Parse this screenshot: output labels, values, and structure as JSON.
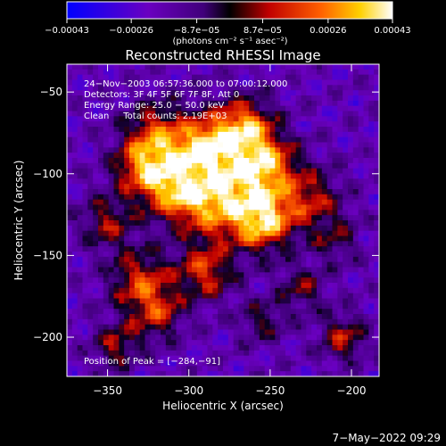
{
  "chart_data": {
    "type": "heatmap",
    "title": "Reconstructed RHESSI Image",
    "xlabel": "Heliocentric X (arcsec)",
    "ylabel": "Heliocentric Y (arcsec)",
    "xlim": [
      -375,
      -183
    ],
    "ylim": [
      -224,
      -33
    ],
    "x_ticks": [
      -350,
      -300,
      -250,
      -200
    ],
    "x_tick_labels": [
      "−350",
      "−300",
      "−250",
      "−200"
    ],
    "y_ticks": [
      -50,
      -100,
      -150,
      -200
    ],
    "y_tick_labels": [
      "−50",
      "−100",
      "−150",
      "−200"
    ],
    "colorbar": {
      "ticks": [
        -0.00043,
        -0.00026,
        -8.7e-05,
        8.7e-05,
        0.00026,
        0.00043
      ],
      "tick_labels": [
        "−0.00043",
        "−0.00026",
        "−8.7e−05",
        "8.7e−05",
        "0.00026",
        "0.00043"
      ],
      "unit_label": "(photons cm⁻² s⁻¹ asec⁻²)",
      "range": [
        -0.00043,
        0.00043
      ]
    },
    "annotations": [
      "24−Nov−2003 06:57:36.000 to 07:00:12.000",
      "Detectors: 3F 4F 5F 6F 7F 8F, Att 0",
      "Energy Range: 25.0 − 50.0 keV",
      "Clean     Total counts: 2.19E+03"
    ],
    "peak_label": "Position of Peak = [−284,−91]",
    "peak": [
      -284,
      -91
    ],
    "sources": [
      {
        "x": -287,
        "y": -88,
        "amp": 1.0,
        "sigma": 16
      },
      {
        "x": -255,
        "y": -95,
        "amp": 0.8,
        "sigma": 14
      },
      {
        "x": -255,
        "y": -128,
        "amp": 0.9,
        "sigma": 13
      },
      {
        "x": -285,
        "y": -120,
        "amp": 0.6,
        "sigma": 15
      },
      {
        "x": -310,
        "y": -108,
        "amp": 0.7,
        "sigma": 14
      },
      {
        "x": -330,
        "y": -95,
        "amp": 0.55,
        "sigma": 12
      },
      {
        "x": -320,
        "y": -75,
        "amp": 0.5,
        "sigma": 13
      },
      {
        "x": -265,
        "y": -70,
        "amp": 0.55,
        "sigma": 12
      },
      {
        "x": -225,
        "y": -115,
        "amp": 0.45,
        "sigma": 13
      },
      {
        "x": -290,
        "y": -160,
        "amp": 0.55,
        "sigma": 12
      },
      {
        "x": -330,
        "y": -165,
        "amp": 0.5,
        "sigma": 13
      },
      {
        "x": -320,
        "y": -185,
        "amp": 0.45,
        "sigma": 12
      },
      {
        "x": -350,
        "y": -130,
        "amp": 0.4,
        "sigma": 12
      },
      {
        "x": -230,
        "y": -170,
        "amp": 0.35,
        "sigma": 10
      },
      {
        "x": -205,
        "y": -200,
        "amp": 0.45,
        "sigma": 10
      },
      {
        "x": -345,
        "y": -205,
        "amp": 0.4,
        "sigma": 10
      },
      {
        "x": -210,
        "y": -140,
        "amp": 0.3,
        "sigma": 10
      },
      {
        "x": -255,
        "y": -190,
        "amp": 0.3,
        "sigma": 10
      }
    ]
  },
  "footer": {
    "timestamp": "7−May−2022 09:29"
  }
}
